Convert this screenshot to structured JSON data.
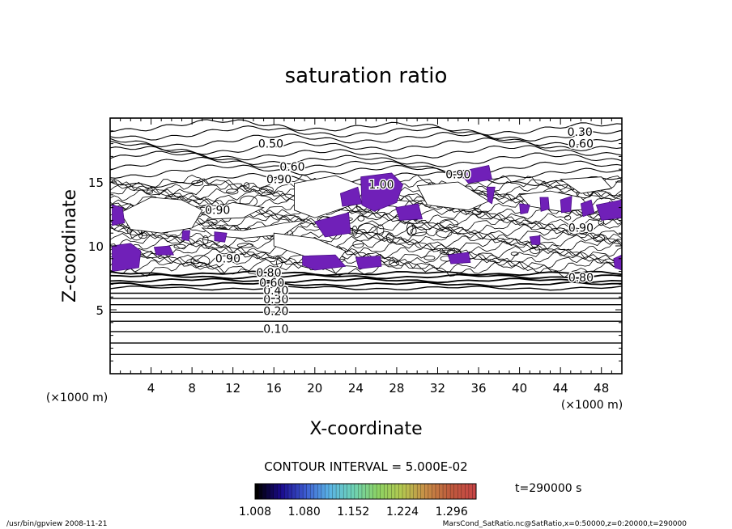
{
  "chart_data": {
    "type": "contour",
    "title": "saturation ratio",
    "xlabel": "X-coordinate",
    "ylabel": "Z-coordinate",
    "x_unit": "(×1000 m)",
    "y_unit": "(×1000 m)",
    "xlim": [
      0,
      50
    ],
    "ylim": [
      0,
      20
    ],
    "x_ticks": [
      4,
      8,
      12,
      16,
      20,
      24,
      28,
      32,
      36,
      40,
      44,
      48
    ],
    "y_ticks": [
      5,
      10,
      15
    ],
    "contour_interval_text": "CONTOUR INTERVAL = 5.000E-02",
    "time_text": "t=290000 s",
    "colorbar": {
      "tick_labels": [
        "1.008",
        "1.080",
        "1.152",
        "1.224",
        "1.296"
      ],
      "min": 1.008,
      "max": 1.332,
      "colors": [
        "#000000",
        "#1a0a8c",
        "#3c5ad0",
        "#5ab4e6",
        "#6ed2b4",
        "#8cd264",
        "#b4c850",
        "#c88c46",
        "#be5a3c",
        "#c84646"
      ]
    },
    "fill_color": "#7020b8",
    "contour_labels": [
      {
        "text": "0.10",
        "x": 16.2,
        "z": 3.2
      },
      {
        "text": "0.20",
        "x": 16.2,
        "z": 4.6
      },
      {
        "text": "0.30",
        "x": 16.2,
        "z": 5.5
      },
      {
        "text": "0.40",
        "x": 16.2,
        "z": 6.2
      },
      {
        "text": "0.60",
        "x": 15.8,
        "z": 6.8
      },
      {
        "text": "0.80",
        "x": 15.5,
        "z": 7.6
      },
      {
        "text": "0.90",
        "x": 11.5,
        "z": 8.7
      },
      {
        "text": "0.90",
        "x": 10.5,
        "z": 12.5
      },
      {
        "text": "0.90",
        "x": 16.5,
        "z": 14.9
      },
      {
        "text": "0.60",
        "x": 17.8,
        "z": 15.9
      },
      {
        "text": "0.50",
        "x": 15.7,
        "z": 17.7
      },
      {
        "text": "1.00",
        "x": 26.5,
        "z": 14.5
      },
      {
        "text": "0.90",
        "x": 34.0,
        "z": 15.3
      },
      {
        "text": "0.30",
        "x": 45.9,
        "z": 18.6
      },
      {
        "text": "0.60",
        "x": 46.0,
        "z": 17.7
      },
      {
        "text": "0.90",
        "x": 46.0,
        "z": 11.1
      },
      {
        "text": "0.80",
        "x": 46.0,
        "z": 7.2
      }
    ]
  },
  "footer": {
    "left": "/usr/bin/gpview   2008-11-21",
    "right": "MarsCond_SatRatio.nc@SatRatio,x=0:50000,z=0:20000,t=290000"
  }
}
